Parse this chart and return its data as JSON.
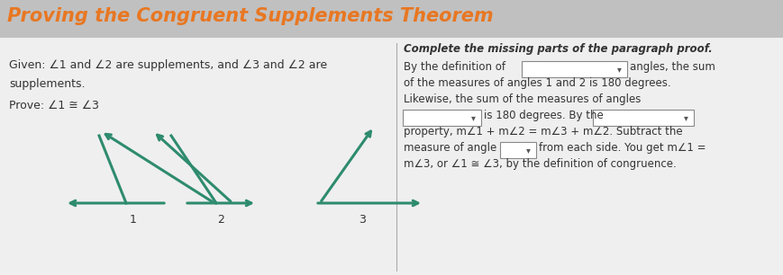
{
  "title": "Proving the Congruent Supplements Theorem",
  "title_color": "#E87722",
  "title_fontsize": 15,
  "bg_color": "#C8C8C8",
  "panel_color": "#F0F0F0",
  "left_panel": {
    "given_text": "Given: ∠1 and ∠2 are supplements, and ∠3 and ∠2 are\nsupplements.",
    "prove_text": "Prove: ∠1 ≅ ∠3"
  },
  "right_panel": {
    "header": "Complete the missing parts of the paragraph proof.",
    "line1_pre": "By the definition of",
    "line1_post": "angles, the sum",
    "line2": "of the measures of angles 1 and 2 is 180 degrees.",
    "line3": "Likewise, the sum of the measures of angles",
    "line4_pre": "",
    "line4_mid": "is 180 degrees. By the",
    "line5": "property, m∠1 + m∠2 = m∠3 + m∠2. Subtract the",
    "line6_pre": "measure of angle",
    "line6_post": "from each side. You get m∠1 =",
    "line7": "m∠3, or ∠1 ≅ ∠3, by the definition of congruence."
  },
  "teal_color": "#2E8B6E",
  "text_color": "#333333",
  "title_bar_color": "#B0B0B0"
}
